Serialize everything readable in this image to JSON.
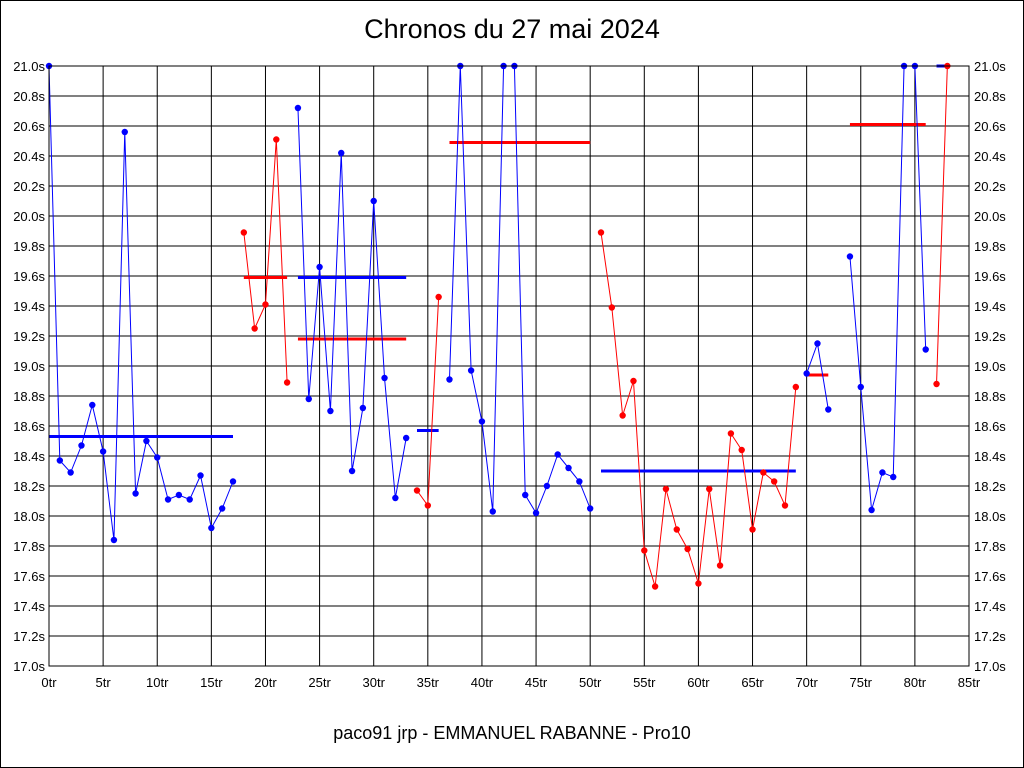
{
  "chart_data": {
    "type": "line",
    "title": "Chronos du 27 mai 2024",
    "footer": "paco91 jrp - EMMANUEL RABANNE - Pro10",
    "xlim": [
      0,
      85
    ],
    "ylim": [
      17.0,
      21.0
    ],
    "x_ticks": [
      0,
      5,
      10,
      15,
      20,
      25,
      30,
      35,
      40,
      45,
      50,
      55,
      60,
      65,
      70,
      75,
      80,
      85
    ],
    "x_tick_labels": [
      "0tr",
      "5tr",
      "10tr",
      "15tr",
      "20tr",
      "25tr",
      "30tr",
      "35tr",
      "40tr",
      "45tr",
      "50tr",
      "55tr",
      "60tr",
      "65tr",
      "70tr",
      "75tr",
      "80tr",
      "85tr"
    ],
    "y_ticks": [
      17.0,
      17.2,
      17.4,
      17.6,
      17.8,
      18.0,
      18.2,
      18.4,
      18.6,
      18.8,
      19.0,
      19.2,
      19.4,
      19.6,
      19.8,
      20.0,
      20.2,
      20.4,
      20.6,
      20.8,
      21.0
    ],
    "y_tick_labels": [
      "17.0s",
      "17.2s",
      "17.4s",
      "17.6s",
      "17.8s",
      "18.0s",
      "18.2s",
      "18.4s",
      "18.6s",
      "18.8s",
      "19.0s",
      "19.2s",
      "19.4s",
      "19.6s",
      "19.8s",
      "20.0s",
      "20.2s",
      "20.4s",
      "20.6s",
      "20.8s",
      "21.0s"
    ],
    "grid": true,
    "colors": {
      "blue": "#0000ff",
      "red": "#ff0000"
    },
    "segments": [
      {
        "color": "blue",
        "x_start": 0,
        "y": [
          21.0,
          18.37,
          18.29,
          18.47,
          18.74,
          18.43,
          17.84,
          20.56,
          18.15,
          18.5,
          18.39,
          18.11,
          18.14,
          18.11,
          18.27,
          17.92,
          18.05,
          18.23
        ],
        "mean": 18.53
      },
      {
        "color": "red",
        "x_start": 18,
        "y": [
          19.89,
          19.25,
          19.41,
          20.51,
          18.89
        ],
        "mean": 19.59
      },
      {
        "color": "blue",
        "x_start": 23,
        "y": [
          20.72,
          18.78,
          19.66,
          18.7,
          20.42,
          18.3,
          18.72,
          20.1,
          18.92,
          18.12,
          18.52
        ],
        "mean": 19.59,
        "mean_color": "blue"
      },
      {
        "color": "red",
        "x_start": 23,
        "y": [],
        "mean": 19.18,
        "mean_x": [
          23,
          33
        ]
      },
      {
        "color": "red",
        "x_start": 34,
        "y": [
          18.17,
          18.07,
          19.46
        ],
        "mean": 18.57,
        "mean_color": "blue",
        "mean_x": [
          34,
          36
        ]
      },
      {
        "color": "blue",
        "x_start": 37,
        "y": [
          18.91,
          21.0,
          18.97,
          18.63,
          18.03,
          21.0,
          21.0,
          18.14,
          18.02,
          18.2,
          18.41,
          18.32,
          18.23,
          18.05
        ],
        "mean": 20.49,
        "mean_color": "red",
        "mean_x": [
          37,
          50
        ]
      },
      {
        "color": "red",
        "x_start": 51,
        "y": [
          19.89,
          19.39,
          18.67,
          18.9,
          17.77,
          17.53,
          18.18,
          17.91,
          17.78,
          17.55,
          18.18,
          17.67,
          18.55,
          18.44,
          17.91,
          18.29,
          18.23,
          18.07,
          18.86
        ],
        "mean": 18.3,
        "mean_color": "blue",
        "mean_x": [
          51,
          69
        ]
      },
      {
        "color": "blue",
        "x_start": 70,
        "y": [
          18.95,
          19.15,
          18.71
        ],
        "mean": 18.94,
        "mean_color": "red",
        "mean_x": [
          70,
          72
        ]
      },
      {
        "color": "blue",
        "x_start": 74,
        "y": [
          19.73,
          18.86,
          18.04,
          18.29,
          18.26,
          21.0,
          21.0,
          19.11
        ],
        "mean": 20.61,
        "mean_color": "red",
        "mean_x": [
          74,
          81
        ]
      },
      {
        "color": "red",
        "x_start": 82,
        "y": [
          18.88,
          21.0
        ],
        "mean": 21.0,
        "mean_color": "blue",
        "mean_x": [
          82,
          83
        ]
      }
    ]
  }
}
